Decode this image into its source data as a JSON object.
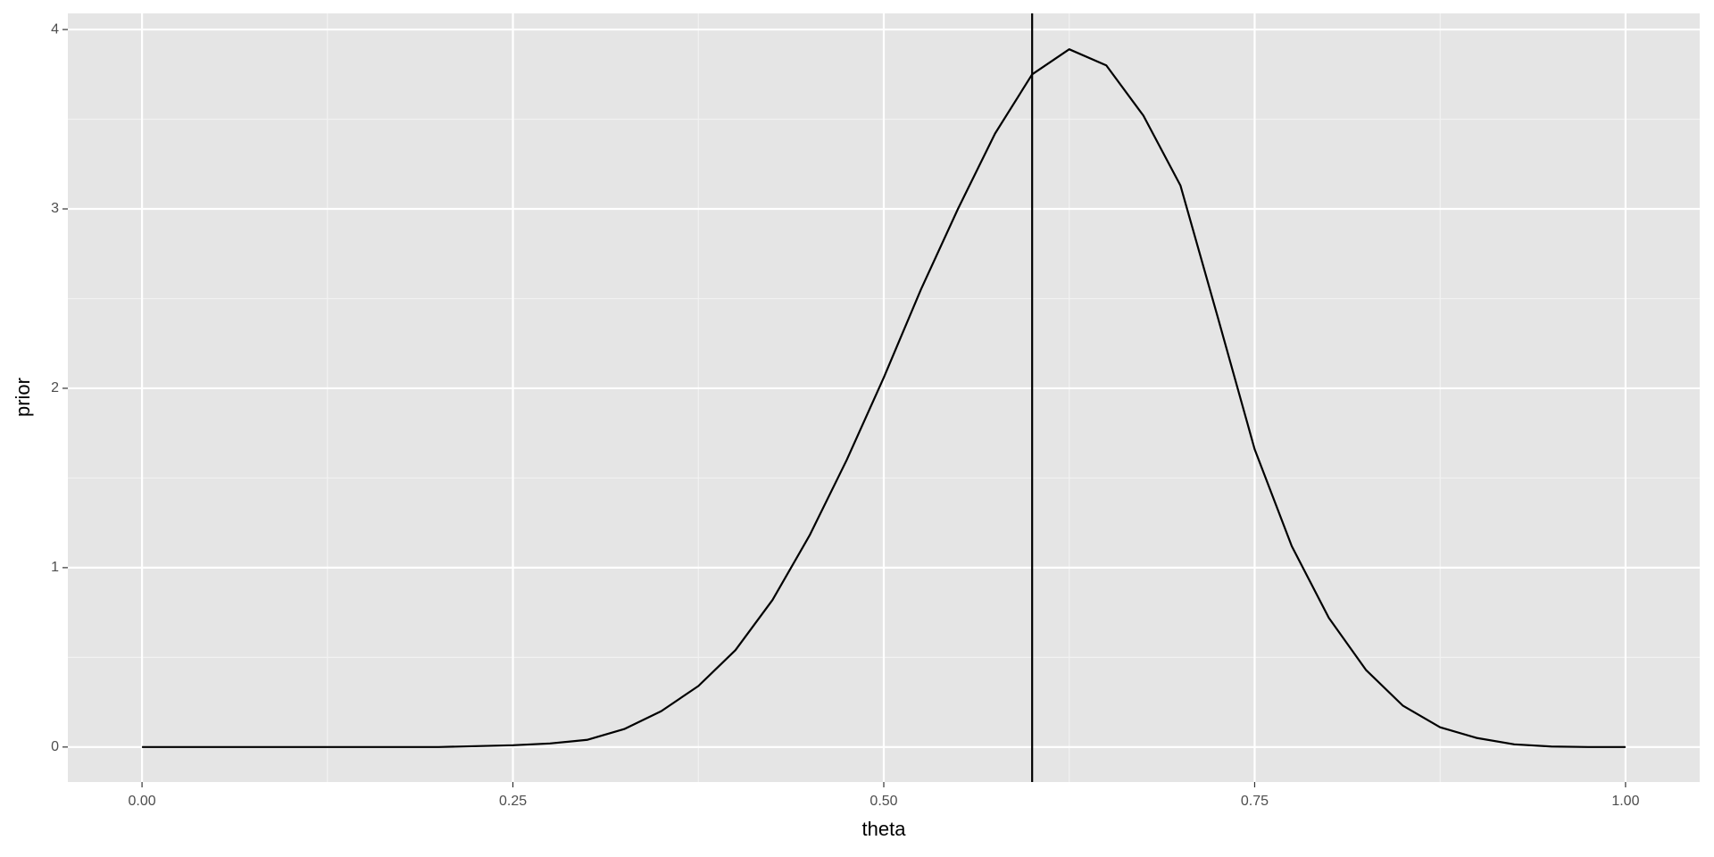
{
  "chart_data": {
    "type": "line",
    "x_label": "theta",
    "y_label": "prior",
    "x": [
      0,
      0.05,
      0.1,
      0.15,
      0.2,
      0.25,
      0.275,
      0.3,
      0.325,
      0.35,
      0.375,
      0.4,
      0.425,
      0.45,
      0.475,
      0.5,
      0.525,
      0.55,
      0.575,
      0.6,
      0.625,
      0.65,
      0.675,
      0.7,
      0.725,
      0.75,
      0.775,
      0.8,
      0.825,
      0.85,
      0.875,
      0.9,
      0.925,
      0.95,
      0.975,
      1
    ],
    "values": [
      0,
      0,
      0,
      0,
      0,
      0.01,
      0.02,
      0.04,
      0.1,
      0.2,
      0.34,
      0.54,
      0.82,
      1.18,
      1.6,
      2.06,
      2.55,
      3.0,
      3.42,
      3.75,
      3.89,
      3.8,
      3.52,
      3.13,
      2.4,
      1.66,
      1.12,
      0.72,
      0.43,
      0.23,
      0.11,
      0.05,
      0.015,
      0.003,
      0,
      0
    ],
    "color": "#000000",
    "vline": 0.6,
    "xlim": [
      -0.05,
      1.05
    ],
    "ylim": [
      -0.195,
      4.09
    ],
    "xticks": [
      {
        "value": 0,
        "label": "0.00"
      },
      {
        "value": 0.25,
        "label": "0.25"
      },
      {
        "value": 0.5,
        "label": "0.50"
      },
      {
        "value": 0.75,
        "label": "0.75"
      },
      {
        "value": 1,
        "label": "1.00"
      }
    ],
    "yticks": [
      0,
      1,
      2,
      3,
      4
    ],
    "minor_xticks": [
      0.125,
      0.375,
      0.625,
      0.875
    ],
    "minor_yticks": [
      0.5,
      1.5,
      2.5,
      3.5
    ],
    "grid": true
  }
}
